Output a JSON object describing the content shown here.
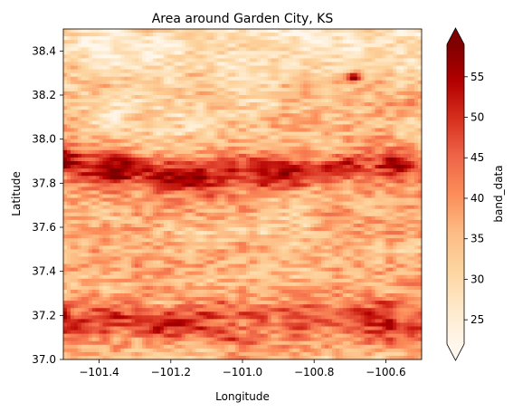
{
  "chart_data": {
    "type": "heatmap",
    "title": "Area around Garden City, KS",
    "xlabel": "Longitude",
    "ylabel": "Latitude",
    "xlim": [
      -101.5,
      -100.5
    ],
    "ylim": [
      37.0,
      38.5
    ],
    "xticks": [
      -101.4,
      -101.2,
      -101.0,
      -100.8,
      -100.6
    ],
    "xtick_labels": [
      "−101.4",
      "−101.2",
      "−101.0",
      "−100.8",
      "−100.6"
    ],
    "yticks": [
      37.0,
      37.2,
      37.4,
      37.6,
      37.8,
      38.0,
      38.2,
      38.4
    ],
    "ytick_labels": [
      "37.0",
      "37.2",
      "37.4",
      "37.6",
      "37.8",
      "38.0",
      "38.2",
      "38.4"
    ],
    "colorbar": {
      "label": "band_data",
      "colormap": "OrRd",
      "vmin": 22,
      "vmax": 59,
      "extend": "both",
      "ticks": [
        25,
        30,
        35,
        40,
        45,
        50,
        55
      ],
      "tick_labels": [
        "25",
        "30",
        "35",
        "40",
        "45",
        "50",
        "55"
      ]
    },
    "grid": false,
    "features": [
      {
        "description": "dark red band",
        "lat_range": [
          37.72,
          37.98
        ],
        "lon_range": [
          -101.5,
          -100.5
        ],
        "approx_value": 57
      },
      {
        "description": "dark red spot",
        "lat": 38.28,
        "lon": -100.69,
        "approx_value": 58
      },
      {
        "description": "mottled red band",
        "lat_range": [
          37.05,
          37.3
        ],
        "lon_range": [
          -101.5,
          -100.5
        ],
        "approx_value": 52
      }
    ]
  }
}
